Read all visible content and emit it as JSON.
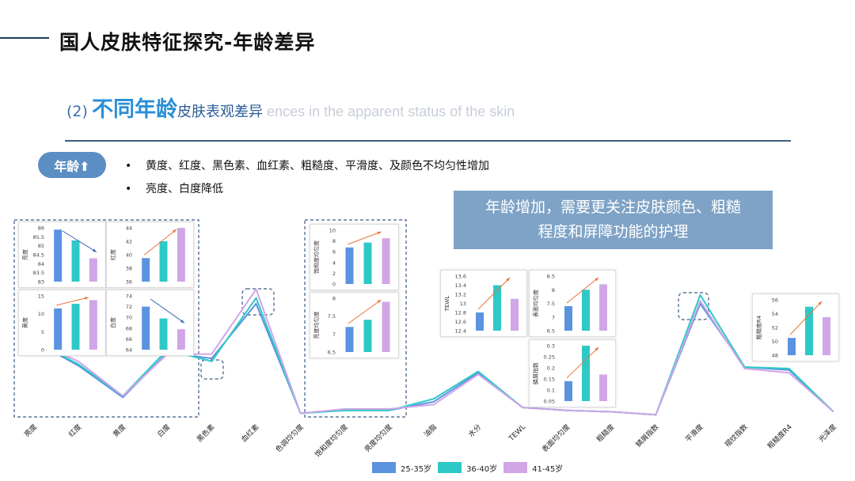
{
  "header": {
    "title": "国人皮肤特征探究-年龄差异",
    "subtitle_prefix": "(2)",
    "subtitle_highlight": "不同年龄",
    "subtitle_cn": "皮肤表观差异",
    "subtitle_en": "ences in the apparent status of the skin"
  },
  "age_pill": {
    "label": "年龄⬆"
  },
  "bullets": [
    "黄度、红度、黑色素、血红素、粗糙度、平滑度、及颜色不均匀性增加",
    "亮度、白度降低"
  ],
  "callout": {
    "line1": "年龄增加，需要更关注皮肤颜色、粗糙",
    "line2": "程度和屏障功能的护理"
  },
  "colors": {
    "series1": "#5b93e0",
    "series2": "#2ec9c6",
    "series3": "#d0a6e6",
    "arrow_orange": "#e8733a",
    "arrow_blue": "#3a64b8",
    "dash_box": "#3b5a86"
  },
  "legend": [
    "25-35岁",
    "36-40岁",
    "41-45岁"
  ],
  "chart_data": [
    {
      "type": "line",
      "categories": [
        "亮度",
        "红度",
        "黄度",
        "白度",
        "黑色素",
        "血红素",
        "色调均匀度",
        "饱和度均匀度",
        "亮度均匀度",
        "油脂",
        "水分",
        "TEWL",
        "表面均匀度",
        "粗糙度",
        "鳞屑指数",
        "平滑度",
        "褶纹指数",
        "粗糙度R4",
        "光泽度"
      ],
      "series": [
        {
          "name": "25-35岁",
          "values": [
            0.52,
            0.35,
            0.13,
            0.44,
            0.4,
            0.78,
            0.02,
            0.04,
            0.04,
            0.1,
            0.3,
            0.06,
            0.04,
            0.03,
            0.01,
            0.78,
            0.34,
            0.32,
            0.03
          ]
        },
        {
          "name": "36-40岁",
          "values": [
            0.52,
            0.36,
            0.14,
            0.46,
            0.38,
            0.82,
            0.02,
            0.04,
            0.04,
            0.12,
            0.31,
            0.06,
            0.04,
            0.03,
            0.01,
            0.84,
            0.34,
            0.33,
            0.03
          ]
        },
        {
          "name": "41-45岁",
          "values": [
            0.52,
            0.38,
            0.14,
            0.43,
            0.43,
            0.88,
            0.02,
            0.05,
            0.05,
            0.08,
            0.29,
            0.06,
            0.04,
            0.03,
            0.01,
            0.8,
            0.33,
            0.3,
            0.03
          ]
        }
      ]
    },
    {
      "type": "bar",
      "ylabel": "亮度",
      "ylim": [
        83,
        86
      ],
      "yticks": [
        "86",
        "85.5",
        "85",
        "84.5",
        "84",
        "83.5",
        "83"
      ],
      "values": [
        85.9,
        85.3,
        84.3
      ],
      "arrow": "down"
    },
    {
      "type": "bar",
      "ylabel": "红度",
      "ylim": [
        36,
        44
      ],
      "yticks": [
        "44",
        "42",
        "40",
        "38",
        "36"
      ],
      "values": [
        39.5,
        42,
        44
      ],
      "arrow": "up"
    },
    {
      "type": "bar",
      "ylabel": "黄度",
      "ylim": [
        0,
        15
      ],
      "yticks": [
        "15",
        "10",
        "5",
        "0"
      ],
      "values": [
        11.5,
        12.8,
        13.8
      ],
      "arrow": "up"
    },
    {
      "type": "bar",
      "ylabel": "白度",
      "ylim": [
        64,
        74
      ],
      "yticks": [
        "74",
        "72",
        "70",
        "68",
        "66",
        "64"
      ],
      "values": [
        72,
        69.8,
        67.8
      ],
      "arrow": "down"
    },
    {
      "type": "bar",
      "ylabel": "饱和度均匀度",
      "ylim": [
        0,
        10
      ],
      "yticks": [
        "10",
        "8",
        "6",
        "4",
        "2",
        "0"
      ],
      "values": [
        6.8,
        7.7,
        8.5
      ],
      "arrow": "up"
    },
    {
      "type": "bar",
      "ylabel": "亮度均匀度",
      "ylim": [
        6.5,
        8
      ],
      "yticks": [
        "8",
        "7.5",
        "7",
        "6.5"
      ],
      "values": [
        7.2,
        7.4,
        7.9
      ],
      "arrow": "up"
    },
    {
      "type": "bar",
      "ylabel": "TEWL",
      "ylim": [
        12.4,
        13.6
      ],
      "yticks": [
        "13.6",
        "13.4",
        "13.2",
        "13",
        "12.8",
        "12.6",
        "12.4"
      ],
      "values": [
        12.8,
        13.4,
        13.1
      ],
      "arrow": "up"
    },
    {
      "type": "bar",
      "ylabel": "表面均匀度",
      "ylim": [
        6.5,
        8.5
      ],
      "yticks": [
        "8.5",
        "8",
        "7.5",
        "7",
        "6.5"
      ],
      "values": [
        7.4,
        8,
        8.2
      ],
      "arrow": "up"
    },
    {
      "type": "bar",
      "ylabel": "鳞屑指数",
      "ylim": [
        0.05,
        0.3
      ],
      "yticks": [
        "0.3",
        "0.25",
        "0.2",
        "0.15",
        "0.1",
        "0.05"
      ],
      "values": [
        0.14,
        0.3,
        0.17
      ],
      "arrow": "up"
    },
    {
      "type": "bar",
      "ylabel": "粗糙度R4",
      "ylim": [
        48,
        56
      ],
      "yticks": [
        "56",
        "54",
        "52",
        "50",
        "48"
      ],
      "values": [
        50.5,
        55,
        53.5
      ],
      "arrow": "up"
    }
  ]
}
